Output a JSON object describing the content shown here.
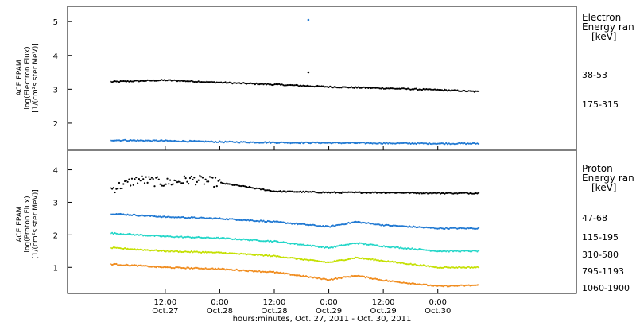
{
  "chart_data": [
    {
      "type": "scatter",
      "title": "",
      "ylabel": [
        "ACE EPAM",
        "log(Electron Flux)",
        "[1/(cm²s ster MeV)]"
      ],
      "ylim": [
        1.2,
        5.45
      ],
      "yticks": [
        2,
        3,
        4,
        5
      ],
      "legend_title": [
        "Electron",
        "Energy ran",
        "[keV]"
      ],
      "series": [
        {
          "name": "38-53",
          "color": "#000000",
          "x": [
            "2011-10-27 00:00",
            "2011-10-27 12:00",
            "2011-10-28 00:00",
            "2011-10-28 12:00",
            "2011-10-29 00:00",
            "2011-10-29 12:00",
            "2011-10-30 00:00",
            "2011-10-30 09:00"
          ],
          "y": [
            3.22,
            3.27,
            3.2,
            3.14,
            3.07,
            3.03,
            2.98,
            2.93
          ]
        },
        {
          "name": "175-315",
          "color": "#1f78d2",
          "x": [
            "2011-10-27 00:00",
            "2011-10-27 12:00",
            "2011-10-28 00:00",
            "2011-10-28 12:00",
            "2011-10-29 00:00",
            "2011-10-29 12:00",
            "2011-10-30 00:00",
            "2011-10-30 09:00"
          ],
          "y": [
            1.5,
            1.48,
            1.45,
            1.43,
            1.42,
            1.41,
            1.4,
            1.4
          ]
        }
      ],
      "outliers": [
        {
          "x": "2011-10-28 19:30",
          "y": 5.05
        },
        {
          "x": "2011-10-28 19:30",
          "y": 3.5
        }
      ]
    },
    {
      "type": "scatter",
      "title": "",
      "ylabel": [
        "ACE EPAM",
        "log(Proton Flux)",
        "[1/(cm²s ster MeV)]"
      ],
      "ylim": [
        0.2,
        4.6
      ],
      "yticks": [
        1,
        2,
        3,
        4
      ],
      "legend_title": [
        "Proton",
        "Energy ran",
        "[keV]"
      ],
      "series": [
        {
          "name": "47-68",
          "color": "#000000",
          "x": [
            "2011-10-27 00:00",
            "2011-10-27 06:00",
            "2011-10-27 12:00",
            "2011-10-27 18:00",
            "2011-10-28 00:00",
            "2011-10-28 12:00",
            "2011-10-29 00:00",
            "2011-10-29 12:00",
            "2011-10-30 00:00",
            "2011-10-30 09:00"
          ],
          "y": [
            3.4,
            3.7,
            3.6,
            3.7,
            3.6,
            3.34,
            3.3,
            3.3,
            3.28,
            3.28
          ]
        },
        {
          "name": "115-195",
          "color": "#1f78d2",
          "x": [
            "2011-10-27 00:00",
            "2011-10-27 12:00",
            "2011-10-28 00:00",
            "2011-10-28 12:00",
            "2011-10-29 00:00",
            "2011-10-29 06:00",
            "2011-10-29 12:00",
            "2011-10-30 00:00",
            "2011-10-30 09:00"
          ],
          "y": [
            2.65,
            2.55,
            2.5,
            2.4,
            2.25,
            2.4,
            2.3,
            2.2,
            2.2
          ]
        },
        {
          "name": "310-580",
          "color": "#22d6c8",
          "x": [
            "2011-10-27 00:00",
            "2011-10-27 12:00",
            "2011-10-28 00:00",
            "2011-10-28 12:00",
            "2011-10-29 00:00",
            "2011-10-29 06:00",
            "2011-10-29 12:00",
            "2011-10-30 00:00",
            "2011-10-30 09:00"
          ],
          "y": [
            2.05,
            1.95,
            1.9,
            1.8,
            1.6,
            1.75,
            1.65,
            1.5,
            1.5
          ]
        },
        {
          "name": "795-1193",
          "color": "#c4e000",
          "x": [
            "2011-10-27 00:00",
            "2011-10-27 12:00",
            "2011-10-28 00:00",
            "2011-10-28 12:00",
            "2011-10-29 00:00",
            "2011-10-29 06:00",
            "2011-10-29 12:00",
            "2011-10-30 00:00",
            "2011-10-30 09:00"
          ],
          "y": [
            1.6,
            1.5,
            1.45,
            1.35,
            1.15,
            1.3,
            1.2,
            1.0,
            1.0
          ]
        },
        {
          "name": "1060-1900",
          "color": "#f08c1e",
          "x": [
            "2011-10-27 00:00",
            "2011-10-27 12:00",
            "2011-10-28 00:00",
            "2011-10-28 12:00",
            "2011-10-29 00:00",
            "2011-10-29 06:00",
            "2011-10-29 12:00",
            "2011-10-30 00:00",
            "2011-10-30 09:00"
          ],
          "y": [
            1.1,
            1.0,
            0.95,
            0.85,
            0.62,
            0.75,
            0.6,
            0.42,
            0.45
          ]
        }
      ]
    }
  ],
  "xaxis": {
    "range": [
      "2011-10-26 14:30",
      "2011-10-31 06:30"
    ],
    "ticks": [
      {
        "x": "2011-10-27 12:00",
        "time": "12:00",
        "date": "Oct.27"
      },
      {
        "x": "2011-10-28 00:00",
        "time": "0:00",
        "date": "Oct.28"
      },
      {
        "x": "2011-10-28 12:00",
        "time": "12:00",
        "date": "Oct.28"
      },
      {
        "x": "2011-10-29 00:00",
        "time": "0:00",
        "date": "Oct.29"
      },
      {
        "x": "2011-10-29 12:00",
        "time": "12:00",
        "date": "Oct.29"
      },
      {
        "x": "2011-10-30 00:00",
        "time": "0:00",
        "date": "Oct.30"
      }
    ],
    "label": "hours:minutes, Oct. 27, 2011 - Oct. 30, 2011"
  }
}
